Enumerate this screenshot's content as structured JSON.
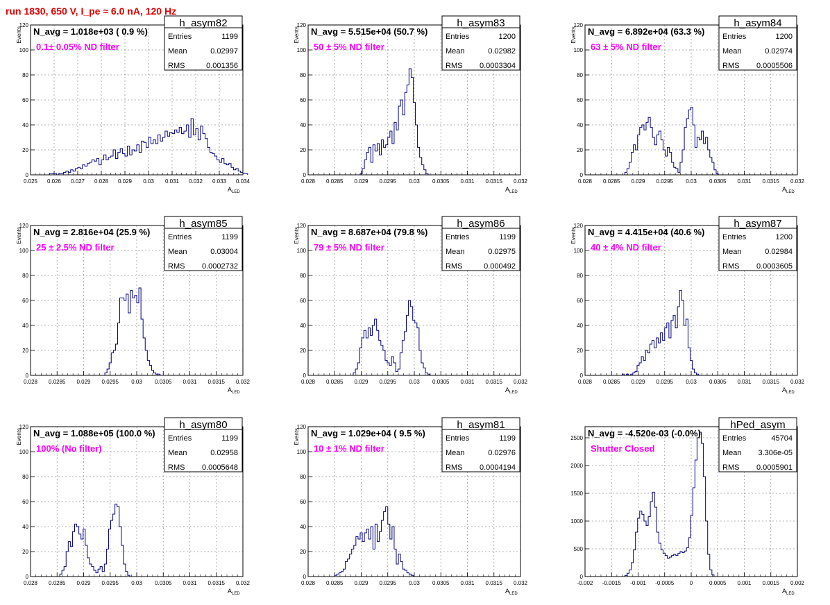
{
  "page_title": "run 1830,   650 V, I_pe ≈ 6.0 nA, 120 Hz",
  "colors": {
    "line": "#00007f",
    "title": "#e00000",
    "filter_label": "#ff00ff",
    "grid": "#999999"
  },
  "chart_data": [
    {
      "type": "histogram",
      "hist_name": "h_asym82",
      "header": "N_avg = 1.018e+03 ( 0.9 %)",
      "filter_label": "0.1± 0.05% ND filter",
      "stats": [
        {
          "label": "Entries",
          "value": "1199"
        },
        {
          "label": "Mean",
          "value": "0.02997"
        },
        {
          "label": "RMS",
          "value": "0.001356"
        }
      ],
      "xlabel": "A_LED",
      "ylabel": "Events",
      "xlim": [
        0.025,
        0.034
      ],
      "ylim": [
        0,
        120
      ],
      "xticks": [
        "0.025",
        "0.026",
        "0.027",
        "0.028",
        "0.029",
        "0.03",
        "0.031",
        "0.032",
        "0.033",
        "0.034"
      ],
      "yticks": [
        "0",
        "20",
        "40",
        "60",
        "80",
        "100",
        "120"
      ],
      "bin_start": 0.0258,
      "bin_width": 0.0001,
      "values": [
        1,
        1,
        1,
        0,
        1,
        1,
        2,
        3,
        2,
        4,
        3,
        5,
        6,
        5,
        8,
        7,
        9,
        10,
        12,
        11,
        13,
        8,
        12,
        16,
        12,
        14,
        15,
        20,
        13,
        18,
        21,
        17,
        15,
        23,
        16,
        20,
        19,
        24,
        18,
        27,
        26,
        22,
        30,
        25,
        28,
        25,
        32,
        27,
        30,
        35,
        31,
        34,
        33,
        36,
        34,
        38,
        33,
        35,
        40,
        30,
        45,
        32,
        37,
        28,
        39,
        33,
        29,
        22,
        18,
        17,
        15,
        12,
        10,
        13,
        9,
        8,
        9,
        6,
        4,
        5,
        3,
        2,
        1,
        1
      ]
    },
    {
      "type": "histogram",
      "hist_name": "h_asym83",
      "header": "N_avg = 5.515e+04 (50.7 %)",
      "filter_label": "50 ± 5% ND filter",
      "stats": [
        {
          "label": "Entries",
          "value": "1200"
        },
        {
          "label": "Mean",
          "value": "0.02982"
        },
        {
          "label": "RMS",
          "value": "0.0003304"
        }
      ],
      "xlabel": "A_LED",
      "ylabel": "Events",
      "xlim": [
        0.028,
        0.032
      ],
      "ylim": [
        0,
        120
      ],
      "xticks": [
        "0.028",
        "0.0285",
        "0.029",
        "0.0295",
        "0.03",
        "0.0305",
        "0.031",
        "0.0315",
        "0.032"
      ],
      "yticks": [
        "0",
        "20",
        "40",
        "60",
        "80",
        "100",
        "120"
      ],
      "bin_start": 0.02898,
      "bin_width": 4e-05,
      "values": [
        1,
        5,
        12,
        18,
        22,
        10,
        24,
        19,
        25,
        16,
        28,
        22,
        24,
        30,
        35,
        25,
        42,
        36,
        55,
        60,
        48,
        66,
        72,
        85,
        78,
        58,
        40,
        22,
        14,
        8,
        4,
        1
      ]
    },
    {
      "type": "histogram",
      "hist_name": "h_asym84",
      "header": "N_avg = 6.892e+04 (63.3 %)",
      "filter_label": "63 ± 5% ND filter",
      "stats": [
        {
          "label": "Entries",
          "value": "1200"
        },
        {
          "label": "Mean",
          "value": "0.02974"
        },
        {
          "label": "RMS",
          "value": "0.0005506"
        }
      ],
      "xlabel": "A_LED",
      "ylabel": "Events",
      "xlim": [
        0.028,
        0.032
      ],
      "ylim": [
        0,
        120
      ],
      "xticks": [
        "0.028",
        "0.0285",
        "0.029",
        "0.0295",
        "0.03",
        "0.0305",
        "0.031",
        "0.0315",
        "0.032"
      ],
      "yticks": [
        "0",
        "20",
        "40",
        "60",
        "80",
        "100",
        "120"
      ],
      "bin_start": 0.02875,
      "bin_width": 4e-05,
      "values": [
        2,
        5,
        10,
        18,
        24,
        20,
        32,
        38,
        40,
        36,
        42,
        46,
        38,
        30,
        24,
        32,
        35,
        28,
        20,
        15,
        22,
        18,
        10,
        6,
        5,
        2,
        10,
        20,
        38,
        45,
        52,
        54,
        40,
        22,
        30,
        28,
        35,
        25,
        30,
        20,
        14,
        10,
        4,
        1
      ]
    },
    {
      "type": "histogram",
      "hist_name": "h_asym85",
      "header": "N_avg = 2.816e+04 (25.9 %)",
      "filter_label": "25 ± 2.5% ND filter",
      "stats": [
        {
          "label": "Entries",
          "value": "1199"
        },
        {
          "label": "Mean",
          "value": "0.03004"
        },
        {
          "label": "RMS",
          "value": "0.0002732"
        }
      ],
      "xlabel": "A_LED",
      "ylabel": "Events",
      "xlim": [
        0.028,
        0.032
      ],
      "ylim": [
        0,
        120
      ],
      "xticks": [
        "0.028",
        "0.0285",
        "0.029",
        "0.0295",
        "0.03",
        "0.0305",
        "0.031",
        "0.0315",
        "0.032"
      ],
      "yticks": [
        "0",
        "20",
        "40",
        "60",
        "80",
        "100",
        "120"
      ],
      "bin_start": 0.0294,
      "bin_width": 4e-05,
      "values": [
        2,
        5,
        10,
        18,
        20,
        25,
        42,
        62,
        62,
        60,
        65,
        50,
        68,
        62,
        64,
        58,
        70,
        45,
        30,
        20,
        12,
        8,
        4,
        2,
        1,
        1
      ]
    },
    {
      "type": "histogram",
      "hist_name": "h_asym86",
      "header": "N_avg = 8.687e+04 (79.8 %)",
      "filter_label": "79 ± 5% ND filter",
      "stats": [
        {
          "label": "Entries",
          "value": "1199"
        },
        {
          "label": "Mean",
          "value": "0.02975"
        },
        {
          "label": "RMS",
          "value": "0.000492"
        }
      ],
      "xlabel": "A_LED",
      "ylabel": "Events",
      "xlim": [
        0.028,
        0.032
      ],
      "ylim": [
        0,
        120
      ],
      "xticks": [
        "0.028",
        "0.0285",
        "0.029",
        "0.0295",
        "0.03",
        "0.0305",
        "0.031",
        "0.0315",
        "0.032"
      ],
      "yticks": [
        "0",
        "20",
        "40",
        "60",
        "80",
        "100",
        "120"
      ],
      "bin_start": 0.02885,
      "bin_width": 4e-05,
      "values": [
        2,
        5,
        10,
        22,
        30,
        36,
        30,
        38,
        32,
        40,
        45,
        36,
        28,
        24,
        20,
        12,
        10,
        8,
        15,
        10,
        3,
        5,
        18,
        28,
        35,
        48,
        60,
        55,
        44,
        42,
        38,
        20,
        10,
        6,
        2,
        1
      ]
    },
    {
      "type": "histogram",
      "hist_name": "h_asym87",
      "header": "N_avg = 4.415e+04 (40.6 %)",
      "filter_label": "40 ± 4% ND filter",
      "stats": [
        {
          "label": "Entries",
          "value": "1200"
        },
        {
          "label": "Mean",
          "value": "0.02984"
        },
        {
          "label": "RMS",
          "value": "0.0003605"
        }
      ],
      "xlabel": "A_LED",
      "ylabel": "Events",
      "xlim": [
        0.028,
        0.032
      ],
      "ylim": [
        0,
        120
      ],
      "xticks": [
        "0.028",
        "0.0285",
        "0.029",
        "0.0295",
        "0.03",
        "0.0305",
        "0.031",
        "0.0315",
        "0.032"
      ],
      "yticks": [
        "0",
        "20",
        "40",
        "60",
        "80",
        "100",
        "120"
      ],
      "bin_start": 0.0287,
      "bin_width": 4e-05,
      "values": [
        1,
        0,
        1,
        0,
        1,
        2,
        3,
        8,
        10,
        15,
        12,
        20,
        18,
        25,
        28,
        22,
        30,
        26,
        34,
        28,
        38,
        42,
        30,
        44,
        48,
        38,
        55,
        68,
        60,
        40,
        45,
        22,
        12,
        5,
        2,
        1
      ]
    },
    {
      "type": "histogram",
      "hist_name": "h_asym80",
      "header": "N_avg = 1.088e+05 (100.0 %)",
      "filter_label": "100% (No filter)",
      "stats": [
        {
          "label": "Entries",
          "value": "1199"
        },
        {
          "label": "Mean",
          "value": "0.02958"
        },
        {
          "label": "RMS",
          "value": "0.0005648"
        }
      ],
      "xlabel": "A_LED",
      "ylabel": "Events",
      "xlim": [
        0.028,
        0.032
      ],
      "ylim": [
        0,
        120
      ],
      "xticks": [
        "0.028",
        "0.0285",
        "0.029",
        "0.0295",
        "0.03",
        "0.0305",
        "0.031",
        "0.0315",
        "0.032"
      ],
      "yticks": [
        "0",
        "20",
        "40",
        "60",
        "80",
        "100",
        "120"
      ],
      "bin_start": 0.02855,
      "bin_width": 4e-05,
      "values": [
        2,
        5,
        8,
        20,
        28,
        24,
        36,
        42,
        40,
        34,
        30,
        38,
        25,
        15,
        10,
        8,
        5,
        3,
        6,
        8,
        4,
        10,
        22,
        38,
        45,
        50,
        58,
        56,
        40,
        25,
        10,
        4,
        1
      ]
    },
    {
      "type": "histogram",
      "hist_name": "h_asym81",
      "header": "N_avg = 1.029e+04 ( 9.5 %)",
      "filter_label": "10 ± 1% ND filter",
      "stats": [
        {
          "label": "Entries",
          "value": "1199"
        },
        {
          "label": "Mean",
          "value": "0.02976"
        },
        {
          "label": "RMS",
          "value": "0.0004194"
        }
      ],
      "xlabel": "A_LED",
      "ylabel": "Events",
      "xlim": [
        0.028,
        0.032
      ],
      "ylim": [
        0,
        120
      ],
      "xticks": [
        "0.028",
        "0.0285",
        "0.029",
        "0.0295",
        "0.03",
        "0.0305",
        "0.031",
        "0.0315",
        "0.032"
      ],
      "yticks": [
        "0",
        "20",
        "40",
        "60",
        "80",
        "100",
        "120"
      ],
      "bin_start": 0.0285,
      "bin_width": 4e-05,
      "values": [
        1,
        2,
        3,
        4,
        6,
        12,
        14,
        18,
        22,
        25,
        32,
        30,
        35,
        28,
        35,
        38,
        30,
        40,
        22,
        42,
        28,
        36,
        45,
        52,
        56,
        42,
        30,
        40,
        22,
        10,
        18,
        12,
        6,
        5,
        3,
        2,
        1
      ]
    },
    {
      "type": "histogram",
      "hist_name": "hPed_asym",
      "header": "N_avg = -4.520e-03 (-0.0%)",
      "filter_label": "Shutter Closed",
      "stats": [
        {
          "label": "Entries",
          "value": "45704"
        },
        {
          "label": "Mean",
          "value": "3.306e-05"
        },
        {
          "label": "RMS",
          "value": "0.0005901"
        }
      ],
      "xlabel": "A_LED",
      "ylabel": "",
      "xlim": [
        -0.002,
        0.002
      ],
      "ylim": [
        0,
        2700
      ],
      "xticks": [
        "-0.002",
        "-0.0015",
        "-0.001",
        "-0.0005",
        "0",
        "0.0005",
        "0.001",
        "0.0015",
        "0.002"
      ],
      "yticks": [
        "0",
        "500",
        "1000",
        "1500",
        "2000",
        "2500"
      ],
      "bin_start": -0.00125,
      "bin_width": 4e-05,
      "values": [
        20,
        60,
        120,
        250,
        480,
        800,
        1050,
        1180,
        1120,
        1000,
        920,
        1080,
        1350,
        1520,
        1250,
        800,
        600,
        480,
        420,
        380,
        330,
        350,
        380,
        400,
        380,
        420,
        450,
        430,
        460,
        520,
        700,
        1100,
        1600,
        2100,
        2500,
        2600,
        2400,
        1800,
        1000,
        400,
        120,
        30
      ]
    }
  ]
}
